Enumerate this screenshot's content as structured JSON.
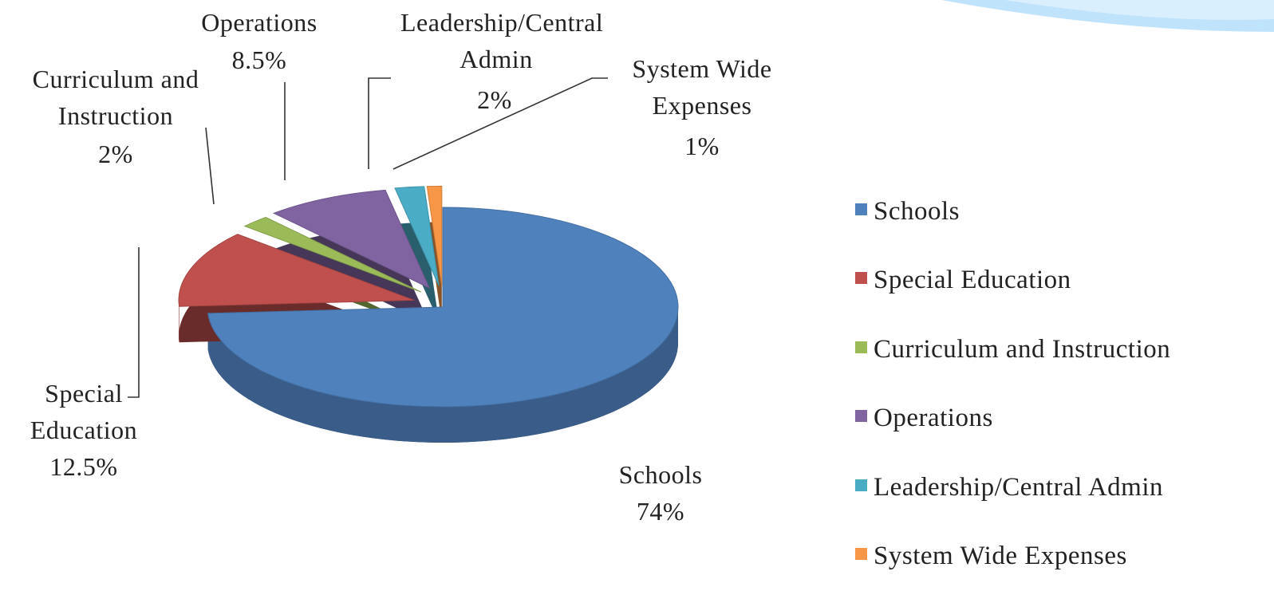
{
  "chart_data": {
    "type": "pie",
    "categories": [
      "Schools",
      "Special Education",
      "Curriculum and Instruction",
      "Operations",
      "Leadership/Central Admin",
      "System Wide Expenses"
    ],
    "values": [
      74,
      12.5,
      2,
      8.5,
      2,
      1
    ],
    "value_labels": [
      "74%",
      "12.5%",
      "2%",
      "8.5%",
      "2%",
      "1%"
    ],
    "colors": [
      "#4f81bd",
      "#c0504d",
      "#9bbb59",
      "#8064a2",
      "#4bacc6",
      "#f79646"
    ],
    "legend": "right"
  }
}
